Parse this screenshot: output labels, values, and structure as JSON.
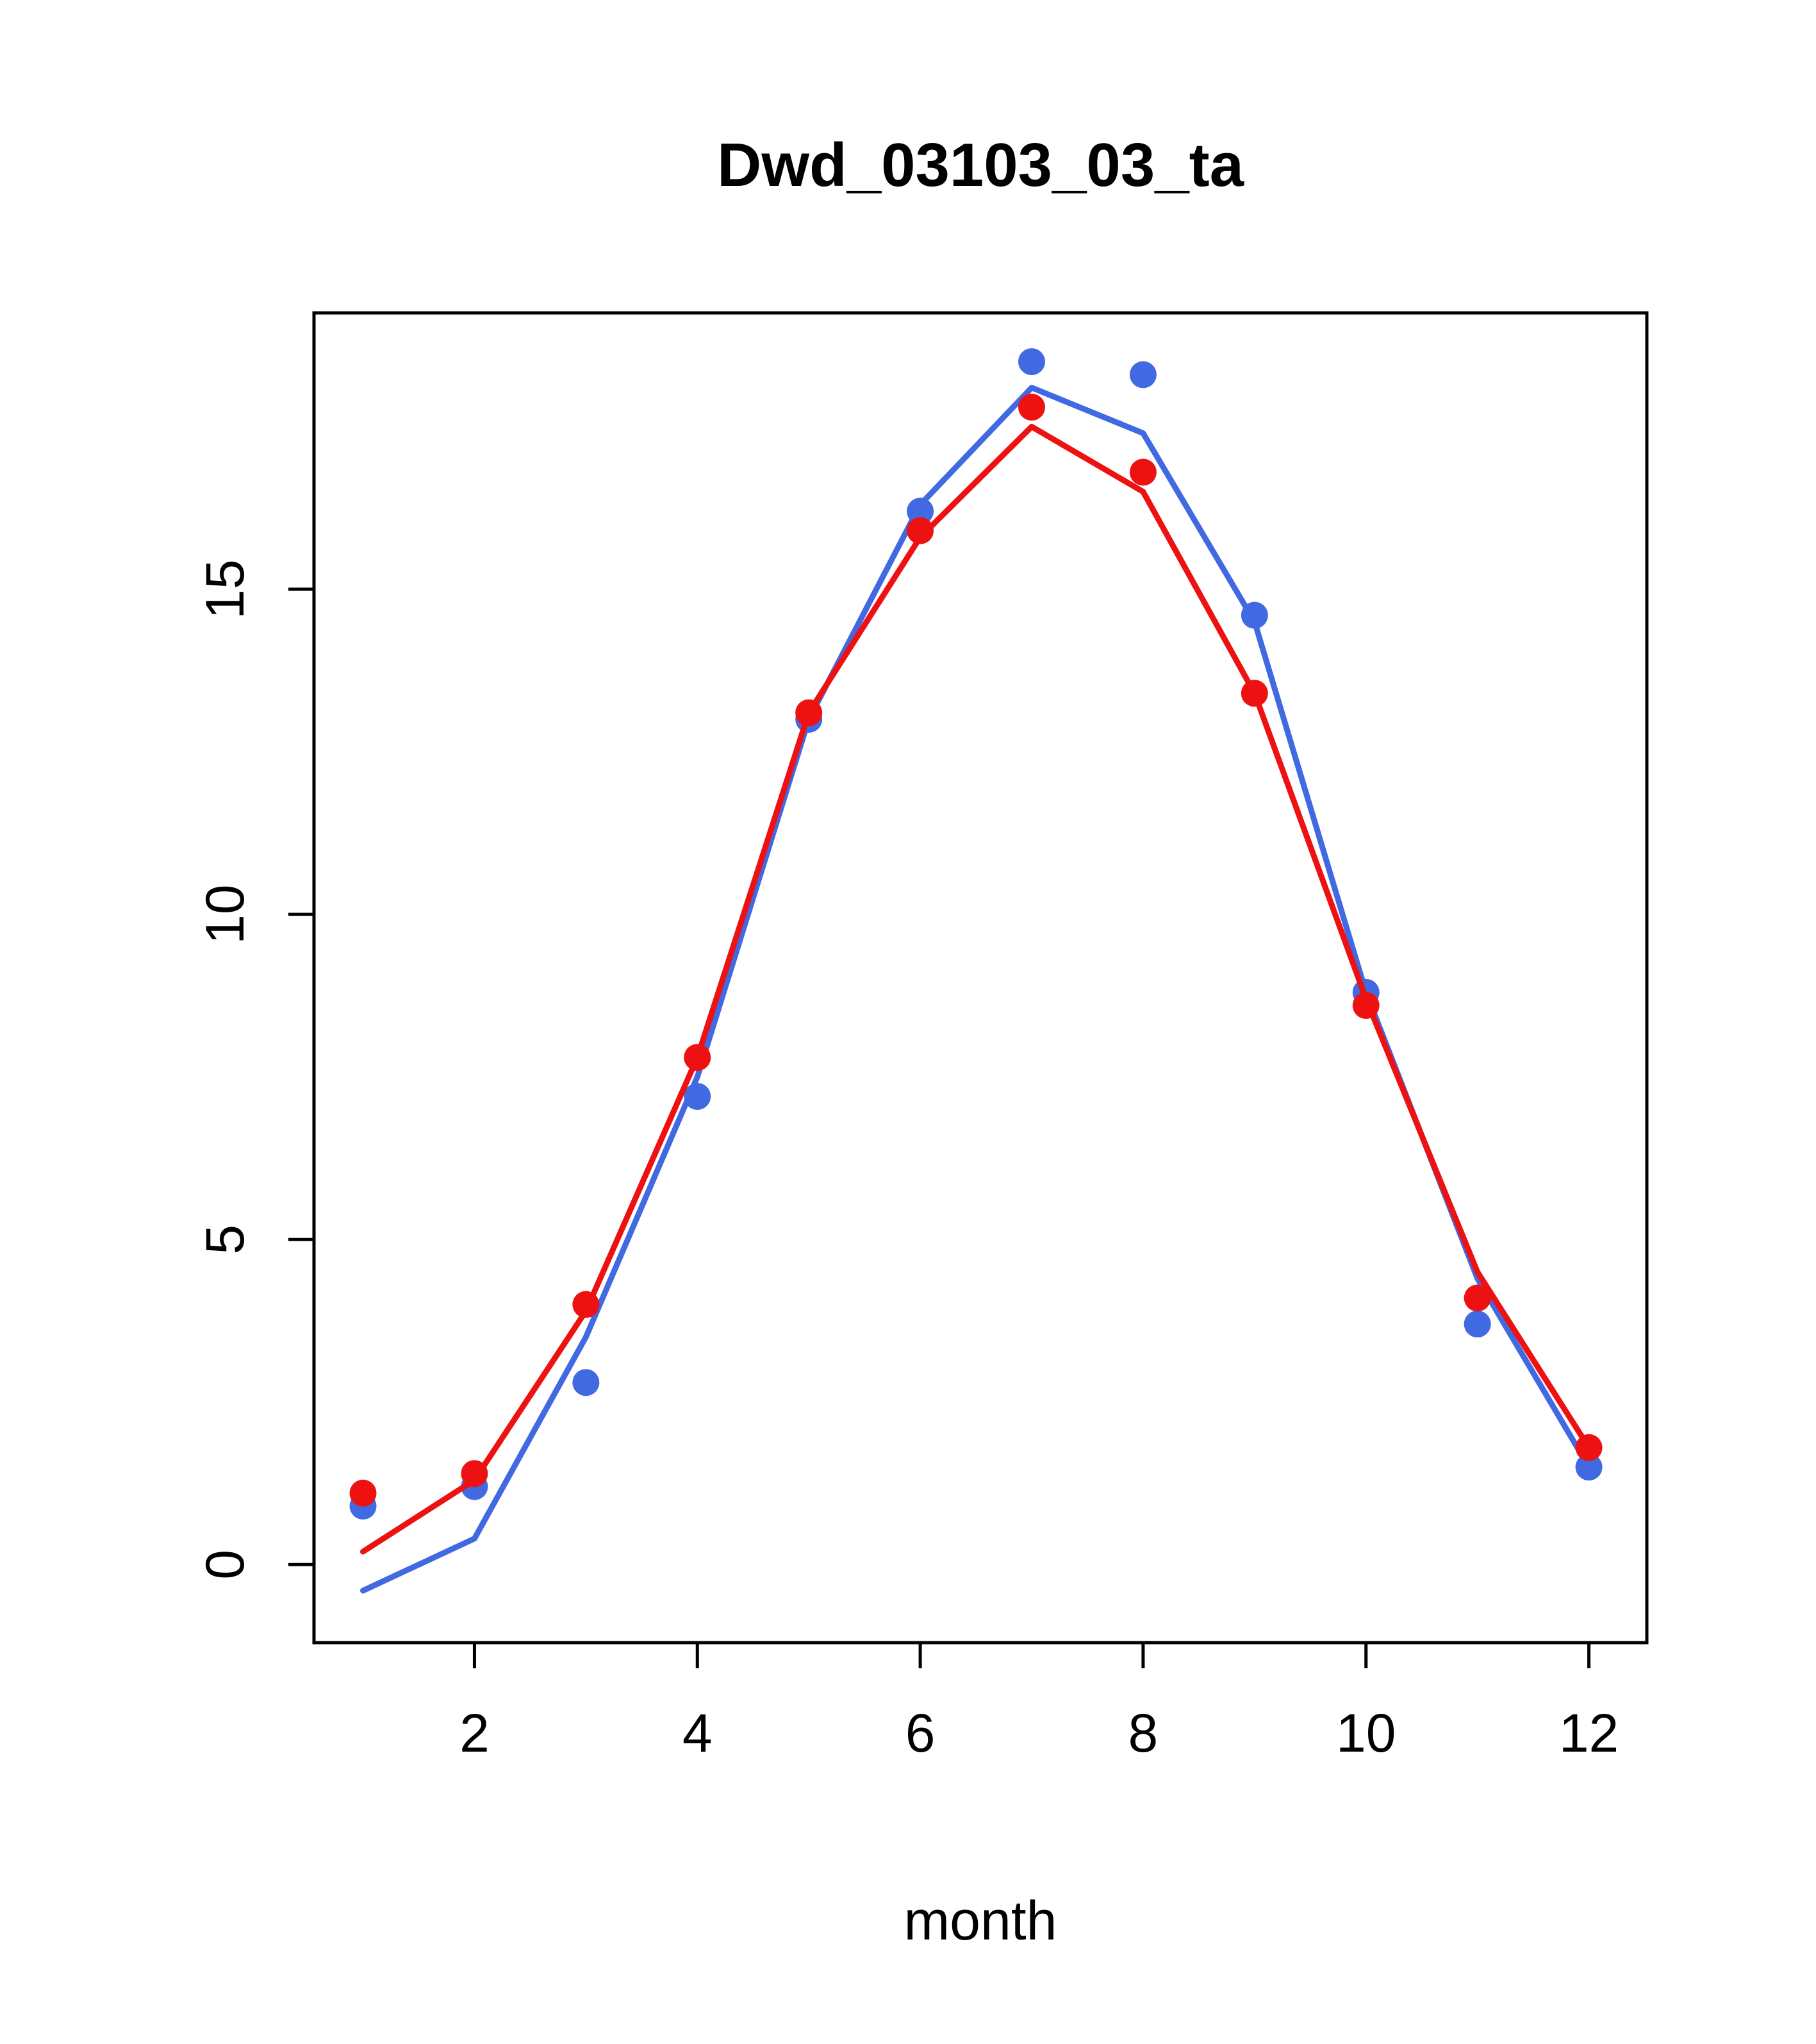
{
  "chart_data": {
    "type": "line",
    "title": "Dwd_03103_03_ta",
    "xlabel": "month",
    "ylabel": "",
    "x": [
      1,
      2,
      3,
      4,
      5,
      6,
      7,
      8,
      9,
      10,
      11,
      12
    ],
    "xticks": [
      2,
      4,
      6,
      8,
      10,
      12
    ],
    "yticks": [
      0,
      5,
      10,
      15
    ],
    "xlim": [
      0.56,
      12.52
    ],
    "ylim": [
      -1.2,
      19.25
    ],
    "grid": false,
    "legend": "none",
    "colors": {
      "red": "#ee1111",
      "blue": "#4169e1"
    },
    "series": [
      {
        "name": "blue-line",
        "kind": "line",
        "color": "#4169e1",
        "values": [
          -0.4,
          0.4,
          3.5,
          7.5,
          13.0,
          16.3,
          18.1,
          17.4,
          14.5,
          8.8,
          4.4,
          1.5
        ]
      },
      {
        "name": "blue-points",
        "kind": "points",
        "color": "#4169e1",
        "values": [
          0.9,
          1.2,
          2.8,
          7.2,
          13.0,
          16.2,
          18.5,
          18.3,
          14.6,
          8.8,
          3.7,
          1.5
        ]
      },
      {
        "name": "red-line",
        "kind": "line",
        "color": "#ee1111",
        "values": [
          0.2,
          1.3,
          3.9,
          7.8,
          13.1,
          15.8,
          17.5,
          16.5,
          13.4,
          8.7,
          4.5,
          1.8
        ]
      },
      {
        "name": "red-points",
        "kind": "points",
        "color": "#ee1111",
        "values": [
          1.1,
          1.4,
          4.0,
          7.8,
          13.1,
          15.9,
          17.8,
          16.8,
          13.4,
          8.6,
          4.1,
          1.8
        ]
      }
    ]
  }
}
